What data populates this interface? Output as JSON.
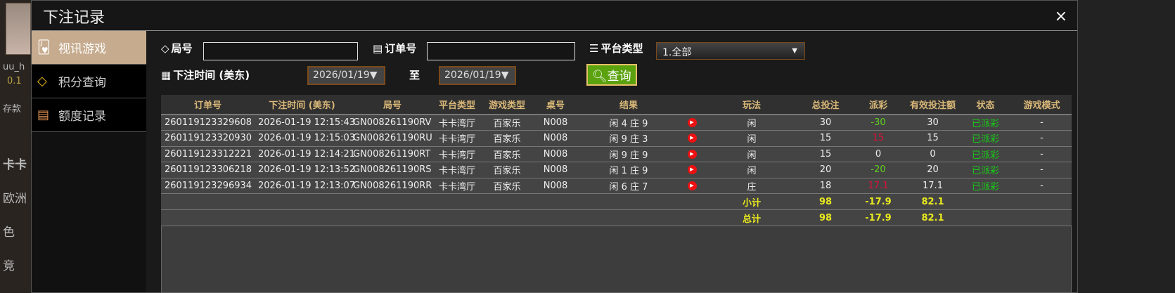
{
  "background": {
    "user": "uu_h",
    "balance": "0.1",
    "deposit": "存款",
    "b1": "卡卡",
    "b2": "欧洲",
    "b3": "色",
    "b4": "竞"
  },
  "modal": {
    "title": "下注记录",
    "close": "×"
  },
  "sidebar": {
    "items": [
      {
        "label": "视讯游戏",
        "icon": "playing-cards-icon",
        "active": true
      },
      {
        "label": "积分查询",
        "icon": "diamond-icon"
      },
      {
        "label": "额度记录",
        "icon": "document-icon"
      }
    ]
  },
  "filters": {
    "round_label": "局号",
    "round_value": "",
    "order_label": "订单号",
    "order_value": "",
    "platform_label": "平台类型",
    "platform_value": "1.全部",
    "time_label": "下注时间 (美东)",
    "date_from": "2026/01/19",
    "to_label": "至",
    "date_to": "2026/01/19",
    "query_label": "查询"
  },
  "table": {
    "headers": [
      "订单号",
      "下注时间 (美东)",
      "局号",
      "平台类型",
      "游戏类型",
      "桌号",
      "结果",
      "",
      "玩法",
      "总投注",
      "派彩",
      "有效投注额",
      "状态",
      "游戏模式"
    ],
    "rows": [
      [
        "260119123329608",
        "2026-01-19 12:15:43",
        "GN008261190RV",
        "卡卡湾厅",
        "百家乐",
        "N008",
        "闲 4 庄 9",
        "",
        "闲",
        "30",
        "-30",
        "30",
        "已派彩",
        "-"
      ],
      [
        "260119123320930",
        "2026-01-19 12:15:03",
        "GN008261190RU",
        "卡卡湾厅",
        "百家乐",
        "N008",
        "闲 9 庄 3",
        "",
        "闲",
        "15",
        "15",
        "15",
        "已派彩",
        "-"
      ],
      [
        "260119123312221",
        "2026-01-19 12:14:21",
        "GN008261190RT",
        "卡卡湾厅",
        "百家乐",
        "N008",
        "闲 9 庄 9",
        "",
        "闲",
        "15",
        "0",
        "0",
        "已派彩",
        "-"
      ],
      [
        "260119123306218",
        "2026-01-19 12:13:52",
        "GN008261190RS",
        "卡卡湾厅",
        "百家乐",
        "N008",
        "闲 1 庄 9",
        "",
        "闲",
        "20",
        "-20",
        "20",
        "已派彩",
        "-"
      ],
      [
        "260119123296934",
        "2026-01-19 12:13:07",
        "GN008261190RR",
        "卡卡湾厅",
        "百家乐",
        "N008",
        "闲 6 庄 7",
        "",
        "庄",
        "18",
        "17.1",
        "17.1",
        "已派彩",
        "-"
      ]
    ],
    "subtotal": {
      "label": "小计",
      "total_bet": "98",
      "payout": "-17.9",
      "valid_bet": "82.1"
    },
    "total": {
      "label": "总计",
      "total_bet": "98",
      "payout": "-17.9",
      "valid_bet": "82.1"
    }
  },
  "colors": {
    "accent": "#c6ab8e",
    "query_button": "#5ba20f",
    "header_text": "#d9b878",
    "negative": "#5fd21c",
    "positive": "#e0103a",
    "status": "#18c818",
    "sum": "#e8e820"
  }
}
